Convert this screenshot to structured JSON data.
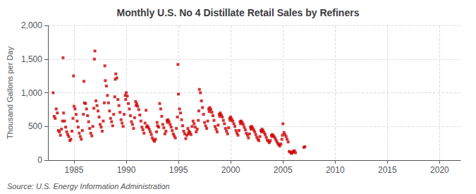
{
  "chart_data": {
    "type": "scatter",
    "title": "Monthly U.S. No 4 Distillate Retail Sales by Refiners",
    "ylabel": "Thousand Gallons per Day",
    "source": "Source: U.S. Energy Information Administration",
    "color": "#CC0000",
    "marker": "square",
    "grid": true,
    "xlim": [
      1982.5,
      2022
    ],
    "xticks": [
      1985,
      1990,
      1995,
      2000,
      2005,
      2010,
      2015,
      2020
    ],
    "ylim": [
      0,
      2000
    ],
    "yticks": [
      0,
      500,
      {
        "value": 1000,
        "label": "1,000"
      },
      {
        "value": 1500,
        "label": "1,500"
      },
      {
        "value": 2000,
        "label": "2,000"
      }
    ],
    "x": [
      1983.0,
      1983.1,
      1983.2,
      1983.3,
      1983.4,
      1983.5,
      1983.6,
      1983.7,
      1983.8,
      1983.9,
      1983.95,
      1984.0,
      1984.1,
      1984.2,
      1984.3,
      1984.4,
      1984.5,
      1984.6,
      1984.7,
      1984.8,
      1984.9,
      1984.95,
      1985.0,
      1985.1,
      1985.2,
      1985.3,
      1985.4,
      1985.5,
      1985.6,
      1985.7,
      1985.8,
      1985.9,
      1985.95,
      1986.0,
      1986.1,
      1986.2,
      1986.3,
      1986.4,
      1986.5,
      1986.6,
      1986.7,
      1986.8,
      1986.9,
      1986.95,
      1987.0,
      1987.1,
      1987.2,
      1987.3,
      1987.4,
      1987.5,
      1987.6,
      1987.7,
      1987.8,
      1987.9,
      1987.95,
      1988.0,
      1988.1,
      1988.2,
      1988.3,
      1988.4,
      1988.5,
      1988.6,
      1988.7,
      1988.8,
      1988.9,
      1988.95,
      1989.0,
      1989.1,
      1989.2,
      1989.3,
      1989.4,
      1989.5,
      1989.6,
      1989.7,
      1989.8,
      1989.9,
      1989.95,
      1990.0,
      1990.1,
      1990.2,
      1990.3,
      1990.4,
      1990.5,
      1990.6,
      1990.7,
      1990.8,
      1990.9,
      1990.95,
      1991.0,
      1991.1,
      1991.2,
      1991.3,
      1991.4,
      1991.5,
      1991.6,
      1991.7,
      1991.8,
      1991.9,
      1991.95,
      1992.0,
      1992.1,
      1992.2,
      1992.3,
      1992.4,
      1992.5,
      1992.6,
      1992.7,
      1992.8,
      1992.9,
      1992.95,
      1993.0,
      1993.1,
      1993.2,
      1993.3,
      1993.4,
      1993.5,
      1993.6,
      1993.7,
      1993.8,
      1993.9,
      1993.95,
      1994.0,
      1994.1,
      1994.2,
      1994.3,
      1994.4,
      1994.5,
      1994.6,
      1994.7,
      1994.8,
      1994.9,
      1994.95,
      1995.0,
      1995.1,
      1995.2,
      1995.3,
      1995.4,
      1995.5,
      1995.6,
      1995.7,
      1995.8,
      1995.9,
      1995.95,
      1996.0,
      1996.1,
      1996.2,
      1996.3,
      1996.4,
      1996.5,
      1996.6,
      1996.7,
      1996.8,
      1996.9,
      1996.95,
      1997.0,
      1997.1,
      1997.2,
      1997.3,
      1997.4,
      1997.5,
      1997.6,
      1997.7,
      1997.8,
      1997.9,
      1997.95,
      1998.0,
      1998.1,
      1998.2,
      1998.3,
      1998.4,
      1998.5,
      1998.6,
      1998.7,
      1998.8,
      1998.9,
      1998.95,
      1999.0,
      1999.1,
      1999.2,
      1999.3,
      1999.4,
      1999.5,
      1999.6,
      1999.7,
      1999.8,
      1999.9,
      1999.95,
      2000.0,
      2000.1,
      2000.2,
      2000.3,
      2000.4,
      2000.5,
      2000.6,
      2000.7,
      2000.8,
      2000.9,
      2000.95,
      2001.0,
      2001.1,
      2001.2,
      2001.3,
      2001.4,
      2001.5,
      2001.6,
      2001.7,
      2001.8,
      2001.9,
      2001.95,
      2002.0,
      2002.1,
      2002.2,
      2002.3,
      2002.4,
      2002.5,
      2002.6,
      2002.7,
      2002.8,
      2002.9,
      2002.95,
      2003.0,
      2003.1,
      2003.2,
      2003.3,
      2003.4,
      2003.5,
      2003.6,
      2003.7,
      2003.8,
      2003.9,
      2003.95,
      2004.0,
      2004.1,
      2004.2,
      2004.3,
      2004.4,
      2004.5,
      2004.6,
      2004.7,
      2004.8,
      2004.9,
      2004.95,
      2005.0,
      2005.1,
      2005.2,
      2005.3,
      2005.4,
      2005.5,
      2005.6,
      2005.7,
      2005.8,
      2005.9,
      2005.95,
      2006.0,
      2006.1,
      2006.2,
      2007.0,
      2007.1
    ],
    "values": [
      1000,
      650,
      620,
      760,
      700,
      440,
      420,
      370,
      460,
      580,
      1520,
      700,
      580,
      490,
      420,
      380,
      350,
      290,
      310,
      430,
      620,
      1250,
      800,
      760,
      680,
      580,
      490,
      400,
      350,
      310,
      440,
      680,
      1170,
      850,
      840,
      760,
      660,
      570,
      470,
      400,
      360,
      500,
      770,
      1500,
      1620,
      880,
      810,
      730,
      640,
      530,
      490,
      430,
      580,
      850,
      1400,
      1180,
      1100,
      960,
      850,
      730,
      620,
      570,
      510,
      680,
      940,
      1200,
      1280,
      1220,
      900,
      810,
      710,
      600,
      550,
      500,
      680,
      960,
      900,
      1000,
      950,
      840,
      760,
      660,
      570,
      530,
      470,
      630,
      870,
      810,
      840,
      800,
      750,
      670,
      580,
      490,
      450,
      400,
      550,
      740,
      490,
      510,
      490,
      460,
      420,
      380,
      330,
      300,
      280,
      310,
      420,
      560,
      510,
      490,
      840,
      760,
      650,
      530,
      480,
      390,
      430,
      590,
      560,
      600,
      570,
      530,
      490,
      440,
      390,
      360,
      330,
      470,
      640,
      1420,
      980,
      760,
      700,
      600,
      510,
      430,
      390,
      320,
      370,
      470,
      390,
      430,
      410,
      380,
      500,
      580,
      540,
      490,
      420,
      460,
      590,
      730,
      1050,
      1000,
      880,
      780,
      680,
      560,
      510,
      470,
      580,
      760,
      720,
      780,
      750,
      710,
      660,
      590,
      500,
      460,
      420,
      520,
      680,
      650,
      700,
      670,
      640,
      590,
      540,
      470,
      430,
      390,
      480,
      620,
      590,
      640,
      610,
      580,
      540,
      500,
      440,
      400,
      370,
      440,
      570,
      540,
      580,
      560,
      530,
      490,
      450,
      400,
      370,
      330,
      390,
      490,
      460,
      500,
      480,
      450,
      420,
      380,
      340,
      310,
      290,
      350,
      440,
      420,
      460,
      440,
      410,
      380,
      340,
      300,
      280,
      260,
      290,
      370,
      350,
      380,
      360,
      340,
      310,
      280,
      250,
      230,
      210,
      240,
      310,
      370,
      540,
      410,
      380,
      350,
      310,
      270,
      130,
      120,
      100,
      110,
      120,
      130,
      140,
      110,
      190,
      200
    ]
  }
}
